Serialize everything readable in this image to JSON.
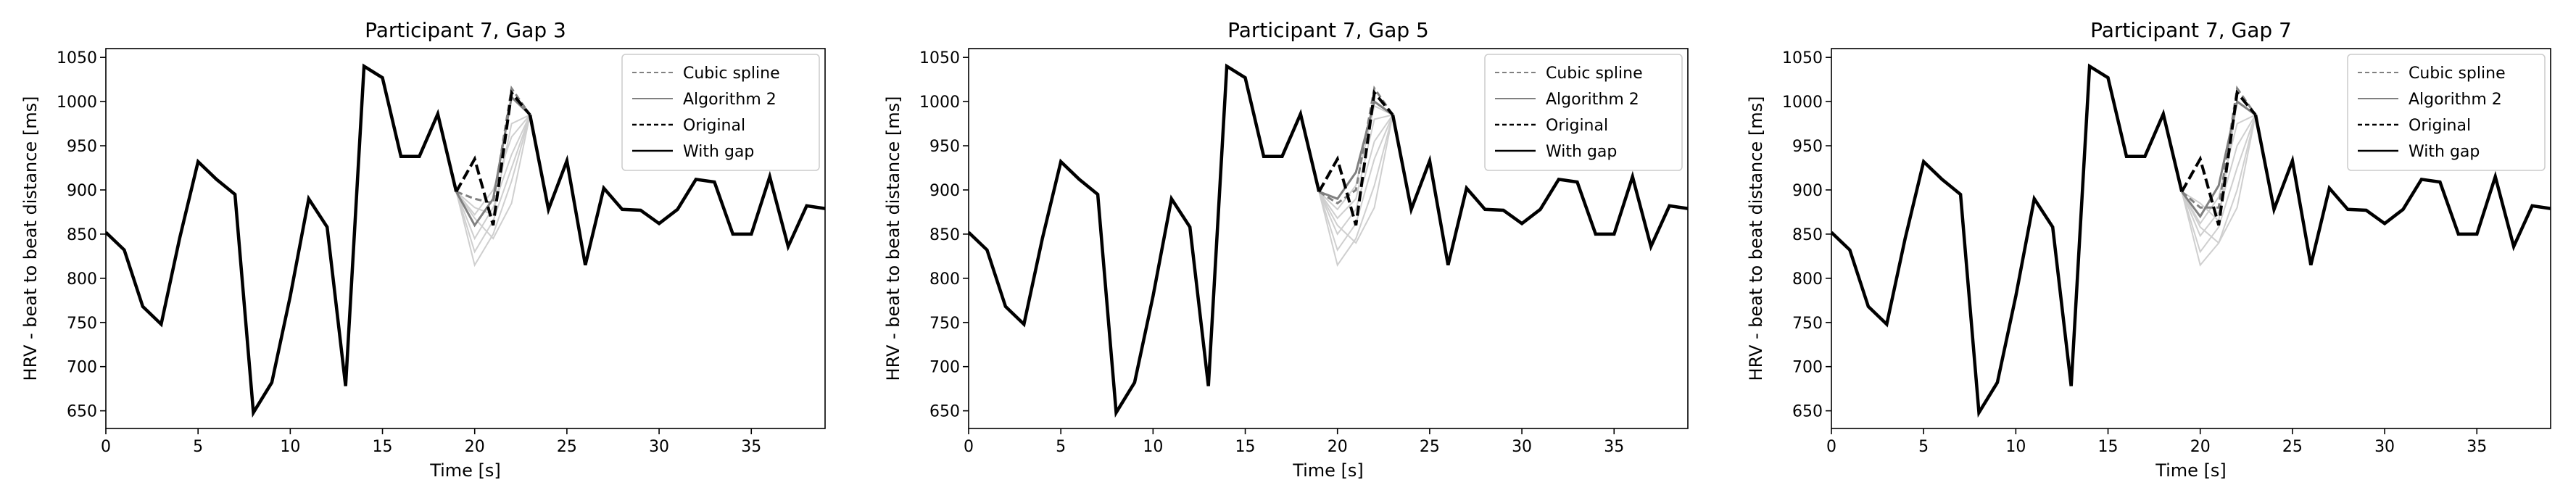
{
  "figure": {
    "background": "#ffffff"
  },
  "chart_data": [
    {
      "type": "line",
      "title": "Participant 7, Gap 3",
      "xlabel": "Time [s]",
      "ylabel": "HRV - beat to beat distance [ms]",
      "xlim": [
        0,
        39
      ],
      "ylim": [
        630,
        1060
      ],
      "xticks": [
        0,
        5,
        10,
        15,
        20,
        25,
        30,
        35
      ],
      "yticks": [
        650,
        700,
        750,
        800,
        850,
        900,
        950,
        1000,
        1050
      ],
      "grid": false,
      "legend": {
        "position": "top-right",
        "entries": [
          "Cubic spline",
          "Algorithm 2",
          "Original",
          "With gap"
        ]
      },
      "series": [
        {
          "name": "With gap",
          "style": "solid",
          "color": "#000000",
          "x": [
            0,
            1,
            2,
            3,
            4,
            5,
            6,
            7,
            8,
            9,
            10,
            11,
            12,
            13,
            14,
            15,
            16,
            17,
            18,
            19,
            23,
            24,
            25,
            26,
            27,
            28,
            29,
            30,
            31,
            32,
            33,
            34,
            35,
            36,
            37,
            38,
            39
          ],
          "y": [
            852,
            832,
            768,
            748,
            845,
            932,
            912,
            895,
            648,
            682,
            780,
            890,
            858,
            678,
            1040,
            1027,
            938,
            938,
            986,
            898,
            985,
            878,
            933,
            815,
            902,
            878,
            877,
            862,
            878,
            912,
            909,
            850,
            850,
            915,
            836,
            882,
            879
          ]
        },
        {
          "name": "Original",
          "style": "dashed",
          "color": "#000000",
          "x": [
            19,
            20,
            21,
            22,
            23
          ],
          "y": [
            898,
            935,
            860,
            1010,
            985
          ]
        },
        {
          "name": "Cubic spline",
          "style": "dashed",
          "color": "#808080",
          "x": [
            19,
            20,
            21,
            22,
            23
          ],
          "y": [
            898,
            890,
            885,
            1015,
            985
          ]
        },
        {
          "name": "Algorithm 2",
          "style": "solid",
          "color": "#808080",
          "x": [
            19,
            20,
            21,
            22,
            23
          ],
          "y": [
            898,
            860,
            890,
            1005,
            985
          ]
        }
      ],
      "faint_candidates": [
        {
          "x": [
            19,
            20,
            21,
            22,
            23
          ],
          "y": [
            898,
            815,
            850,
            910,
            985
          ]
        },
        {
          "x": [
            19,
            20,
            21,
            22,
            23
          ],
          "y": [
            898,
            830,
            865,
            925,
            985
          ]
        },
        {
          "x": [
            19,
            20,
            21,
            22,
            23
          ],
          "y": [
            898,
            845,
            880,
            940,
            985
          ]
        },
        {
          "x": [
            19,
            20,
            21,
            22,
            23
          ],
          "y": [
            898,
            872,
            900,
            960,
            985
          ]
        },
        {
          "x": [
            19,
            20,
            21,
            22,
            23
          ],
          "y": [
            898,
            880,
            872,
            975,
            985
          ]
        },
        {
          "x": [
            19,
            20,
            21,
            22,
            23
          ],
          "y": [
            898,
            868,
            845,
            885,
            985
          ]
        }
      ]
    },
    {
      "type": "line",
      "title": "Participant 7, Gap 5",
      "xlabel": "Time [s]",
      "ylabel": "HRV - beat to beat distance [ms]",
      "xlim": [
        0,
        39
      ],
      "ylim": [
        630,
        1060
      ],
      "xticks": [
        0,
        5,
        10,
        15,
        20,
        25,
        30,
        35
      ],
      "yticks": [
        650,
        700,
        750,
        800,
        850,
        900,
        950,
        1000,
        1050
      ],
      "grid": false,
      "legend": {
        "position": "top-right",
        "entries": [
          "Cubic spline",
          "Algorithm 2",
          "Original",
          "With gap"
        ]
      },
      "series": [
        {
          "name": "With gap",
          "style": "solid",
          "color": "#000000",
          "x": [
            0,
            1,
            2,
            3,
            4,
            5,
            6,
            7,
            8,
            9,
            10,
            11,
            12,
            13,
            14,
            15,
            16,
            17,
            18,
            19,
            23,
            24,
            25,
            26,
            27,
            28,
            29,
            30,
            31,
            32,
            33,
            34,
            35,
            36,
            37,
            38,
            39
          ],
          "y": [
            852,
            832,
            768,
            748,
            845,
            932,
            912,
            895,
            648,
            682,
            780,
            890,
            858,
            678,
            1040,
            1027,
            938,
            938,
            986,
            898,
            985,
            878,
            933,
            815,
            902,
            878,
            877,
            862,
            878,
            912,
            909,
            850,
            850,
            915,
            836,
            882,
            879
          ]
        },
        {
          "name": "Original",
          "style": "dashed",
          "color": "#000000",
          "x": [
            19,
            20,
            21,
            22,
            23
          ],
          "y": [
            898,
            935,
            860,
            1010,
            985
          ]
        },
        {
          "name": "Cubic spline",
          "style": "dashed",
          "color": "#808080",
          "x": [
            19,
            20,
            21,
            22,
            23
          ],
          "y": [
            898,
            885,
            900,
            1015,
            985
          ]
        },
        {
          "name": "Algorithm 2",
          "style": "solid",
          "color": "#808080",
          "x": [
            19,
            20,
            21,
            22,
            23
          ],
          "y": [
            898,
            890,
            920,
            1000,
            985
          ]
        }
      ],
      "faint_candidates": [
        {
          "x": [
            19,
            20,
            21,
            22,
            23
          ],
          "y": [
            898,
            815,
            845,
            905,
            985
          ]
        },
        {
          "x": [
            19,
            20,
            21,
            22,
            23
          ],
          "y": [
            898,
            832,
            862,
            935,
            985
          ]
        },
        {
          "x": [
            19,
            20,
            21,
            22,
            23
          ],
          "y": [
            898,
            850,
            878,
            955,
            985
          ]
        },
        {
          "x": [
            19,
            20,
            21,
            22,
            23
          ],
          "y": [
            898,
            868,
            890,
            980,
            985
          ]
        },
        {
          "x": [
            19,
            20,
            21,
            22,
            23
          ],
          "y": [
            898,
            878,
            905,
            995,
            985
          ]
        },
        {
          "x": [
            19,
            20,
            21,
            22,
            23
          ],
          "y": [
            898,
            860,
            840,
            880,
            985
          ]
        }
      ]
    },
    {
      "type": "line",
      "title": "Participant 7, Gap 7",
      "xlabel": "Time [s]",
      "ylabel": "HRV - beat to beat distance [ms]",
      "xlim": [
        0,
        39
      ],
      "ylim": [
        630,
        1060
      ],
      "xticks": [
        0,
        5,
        10,
        15,
        20,
        25,
        30,
        35
      ],
      "yticks": [
        650,
        700,
        750,
        800,
        850,
        900,
        950,
        1000,
        1050
      ],
      "grid": false,
      "legend": {
        "position": "top-right",
        "entries": [
          "Cubic spline",
          "Algorithm 2",
          "Original",
          "With gap"
        ]
      },
      "series": [
        {
          "name": "With gap",
          "style": "solid",
          "color": "#000000",
          "x": [
            0,
            1,
            2,
            3,
            4,
            5,
            6,
            7,
            8,
            9,
            10,
            11,
            12,
            13,
            14,
            15,
            16,
            17,
            18,
            19,
            23,
            24,
            25,
            26,
            27,
            28,
            29,
            30,
            31,
            32,
            33,
            34,
            35,
            36,
            37,
            38,
            39
          ],
          "y": [
            852,
            832,
            768,
            748,
            845,
            932,
            912,
            895,
            648,
            682,
            780,
            890,
            858,
            678,
            1040,
            1027,
            938,
            938,
            986,
            898,
            985,
            878,
            933,
            815,
            902,
            878,
            877,
            862,
            878,
            912,
            909,
            850,
            850,
            915,
            836,
            882,
            879
          ]
        },
        {
          "name": "Original",
          "style": "dashed",
          "color": "#000000",
          "x": [
            19,
            20,
            21,
            22,
            23
          ],
          "y": [
            898,
            935,
            860,
            1010,
            985
          ]
        },
        {
          "name": "Cubic spline",
          "style": "dashed",
          "color": "#808080",
          "x": [
            19,
            20,
            21,
            22,
            23
          ],
          "y": [
            898,
            880,
            880,
            1015,
            985
          ]
        },
        {
          "name": "Algorithm 2",
          "style": "solid",
          "color": "#808080",
          "x": [
            19,
            20,
            21,
            22,
            23
          ],
          "y": [
            898,
            870,
            905,
            1000,
            985
          ]
        }
      ],
      "faint_candidates": [
        {
          "x": [
            19,
            20,
            21,
            22,
            23
          ],
          "y": [
            898,
            815,
            840,
            900,
            985
          ]
        },
        {
          "x": [
            19,
            20,
            21,
            22,
            23
          ],
          "y": [
            898,
            830,
            858,
            925,
            985
          ]
        },
        {
          "x": [
            19,
            20,
            21,
            22,
            23
          ],
          "y": [
            898,
            848,
            875,
            950,
            985
          ]
        },
        {
          "x": [
            19,
            20,
            21,
            22,
            23
          ],
          "y": [
            898,
            862,
            892,
            975,
            985
          ]
        },
        {
          "x": [
            19,
            20,
            21,
            22,
            23
          ],
          "y": [
            898,
            885,
            865,
            1000,
            985
          ]
        },
        {
          "x": [
            19,
            20,
            21,
            22,
            23
          ],
          "y": [
            898,
            858,
            840,
            880,
            985
          ]
        }
      ]
    }
  ]
}
